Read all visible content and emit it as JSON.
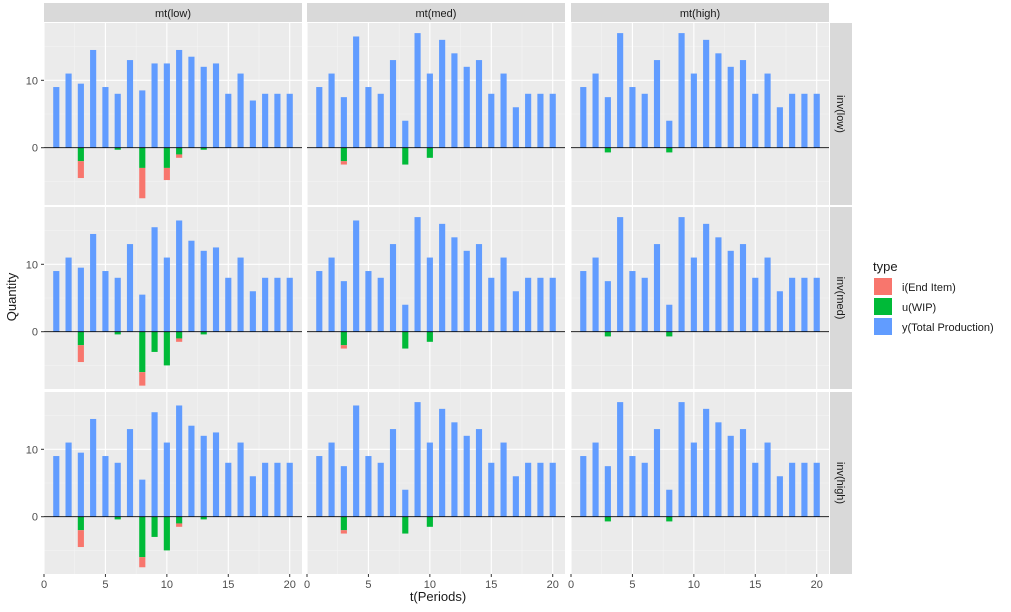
{
  "colors": {
    "panel_bg": "#EBEBEB",
    "strip_bg": "#D9D9D9",
    "grid_major": "#FFFFFF",
    "grid_minor": "#F4F4F4",
    "zero_line": "#000000",
    "text": "#1A1A1A",
    "tick_text": "#4D4D4D",
    "series": [
      "#F8766D",
      "#00BA38",
      "#619CFF"
    ]
  },
  "chart_data": {
    "type": "bar",
    "xlabel": "t(Periods)",
    "ylabel": "Quantity",
    "xlim": [
      0,
      21
    ],
    "ylim": [
      -8.5,
      18.5
    ],
    "x_ticks": [
      0,
      5,
      10,
      15,
      20
    ],
    "y_ticks": [
      0,
      10
    ],
    "grid": true,
    "legend_position": "right",
    "legend": {
      "title": "type",
      "entries": [
        "i(End Item)",
        "u(WIP)",
        "y(Total Production)"
      ]
    },
    "facet_cols": [
      "mt(low)",
      "mt(med)",
      "mt(high)"
    ],
    "facet_rows": [
      "inv(low)",
      "inv(med)",
      "inv(high)"
    ],
    "x": [
      1,
      2,
      3,
      4,
      5,
      6,
      7,
      8,
      9,
      10,
      11,
      12,
      13,
      14,
      15,
      16,
      17,
      18,
      19,
      20
    ],
    "panels": [
      {
        "col": 0,
        "row": 0,
        "y": [
          9,
          11,
          9.5,
          14.5,
          9,
          8,
          13,
          8.5,
          12.5,
          12.5,
          14.5,
          13.5,
          12,
          12.5,
          8,
          11,
          7,
          8,
          8,
          8
        ],
        "u": [
          0,
          0,
          -2,
          0,
          0,
          -0.3,
          0,
          -3,
          0,
          -3,
          -1,
          0,
          -0.3,
          0,
          0,
          0,
          0,
          0,
          0,
          0
        ],
        "i": [
          0,
          0,
          -2.5,
          0,
          0,
          0,
          0,
          -4.5,
          0,
          -1.8,
          -0.5,
          0,
          0,
          0,
          0,
          0,
          0,
          0,
          0,
          0
        ]
      },
      {
        "col": 1,
        "row": 0,
        "y": [
          9,
          11,
          7.5,
          16.5,
          9,
          8,
          13,
          4,
          17,
          11,
          16,
          14,
          12,
          13,
          8,
          11,
          6,
          8,
          8,
          8
        ],
        "u": [
          0,
          0,
          -2,
          0,
          0,
          0,
          0,
          -2.5,
          0,
          -1.5,
          0,
          0,
          0,
          0,
          0,
          0,
          0,
          0,
          0,
          0
        ],
        "i": [
          0,
          0,
          -0.5,
          0,
          0,
          0,
          0,
          0,
          0,
          0,
          0,
          0,
          0,
          0,
          0,
          0,
          0,
          0,
          0,
          0
        ]
      },
      {
        "col": 2,
        "row": 0,
        "y": [
          9,
          11,
          7.5,
          17,
          9,
          8,
          13,
          4,
          17,
          11,
          16,
          14,
          12,
          13,
          8,
          11,
          6,
          8,
          8,
          8
        ],
        "u": [
          0,
          0,
          -0.7,
          0,
          0,
          0,
          0,
          -0.7,
          0,
          0,
          0,
          0,
          0,
          0,
          0,
          0,
          0,
          0,
          0,
          0
        ],
        "i": [
          0,
          0,
          0,
          0,
          0,
          0,
          0,
          0,
          0,
          0,
          0,
          0,
          0,
          0,
          0,
          0,
          0,
          0,
          0,
          0
        ]
      },
      {
        "col": 0,
        "row": 1,
        "y": [
          9,
          11,
          9.5,
          14.5,
          9,
          8,
          13,
          5.5,
          15.5,
          11,
          16.5,
          13.5,
          12,
          12.5,
          8,
          11,
          6,
          8,
          8,
          8
        ],
        "u": [
          0,
          0,
          -2,
          0,
          0,
          -0.4,
          0,
          -6,
          -3,
          -5,
          -1,
          0,
          -0.4,
          0,
          0,
          0,
          0,
          0,
          0,
          0
        ],
        "i": [
          0,
          0,
          -2.5,
          0,
          0,
          0,
          0,
          -2,
          0,
          0,
          -0.5,
          0,
          0,
          0,
          0,
          0,
          0,
          0,
          0,
          0
        ]
      },
      {
        "col": 1,
        "row": 1,
        "y": [
          9,
          11,
          7.5,
          16.5,
          9,
          8,
          13,
          4,
          17,
          11,
          16,
          14,
          12,
          13,
          8,
          11,
          6,
          8,
          8,
          8
        ],
        "u": [
          0,
          0,
          -2,
          0,
          0,
          0,
          0,
          -2.5,
          0,
          -1.5,
          0,
          0,
          0,
          0,
          0,
          0,
          0,
          0,
          0,
          0
        ],
        "i": [
          0,
          0,
          -0.5,
          0,
          0,
          0,
          0,
          0,
          0,
          0,
          0,
          0,
          0,
          0,
          0,
          0,
          0,
          0,
          0,
          0
        ]
      },
      {
        "col": 2,
        "row": 1,
        "y": [
          9,
          11,
          7.5,
          17,
          9,
          8,
          13,
          4,
          17,
          11,
          16,
          14,
          12,
          13,
          8,
          11,
          6,
          8,
          8,
          8
        ],
        "u": [
          0,
          0,
          -0.7,
          0,
          0,
          0,
          0,
          -0.7,
          0,
          0,
          0,
          0,
          0,
          0,
          0,
          0,
          0,
          0,
          0,
          0
        ],
        "i": [
          0,
          0,
          0,
          0,
          0,
          0,
          0,
          0,
          0,
          0,
          0,
          0,
          0,
          0,
          0,
          0,
          0,
          0,
          0,
          0
        ]
      },
      {
        "col": 0,
        "row": 2,
        "y": [
          9,
          11,
          9.5,
          14.5,
          9,
          8,
          13,
          5.5,
          15.5,
          11,
          16.5,
          13.5,
          12,
          12.5,
          8,
          11,
          6,
          8,
          8,
          8
        ],
        "u": [
          0,
          0,
          -2,
          0,
          0,
          -0.4,
          0,
          -6,
          -3,
          -5,
          -1,
          0,
          -0.4,
          0,
          0,
          0,
          0,
          0,
          0,
          0
        ],
        "i": [
          0,
          0,
          -2.5,
          0,
          0,
          0,
          0,
          -1.5,
          0,
          0,
          -0.5,
          0,
          0,
          0,
          0,
          0,
          0,
          0,
          0,
          0
        ]
      },
      {
        "col": 1,
        "row": 2,
        "y": [
          9,
          11,
          7.5,
          16.5,
          9,
          8,
          13,
          4,
          17,
          11,
          16,
          14,
          12,
          13,
          8,
          11,
          6,
          8,
          8,
          8
        ],
        "u": [
          0,
          0,
          -2,
          0,
          0,
          0,
          0,
          -2.5,
          0,
          -1.5,
          0,
          0,
          0,
          0,
          0,
          0,
          0,
          0,
          0,
          0
        ],
        "i": [
          0,
          0,
          -0.5,
          0,
          0,
          0,
          0,
          0,
          0,
          0,
          0,
          0,
          0,
          0,
          0,
          0,
          0,
          0,
          0,
          0
        ]
      },
      {
        "col": 2,
        "row": 2,
        "y": [
          9,
          11,
          7.5,
          17,
          9,
          8,
          13,
          4,
          17,
          11,
          16,
          14,
          12,
          13,
          8,
          11,
          6,
          8,
          8,
          8
        ],
        "u": [
          0,
          0,
          -0.7,
          0,
          0,
          0,
          0,
          -0.7,
          0,
          0,
          0,
          0,
          0,
          0,
          0,
          0,
          0,
          0,
          0,
          0
        ],
        "i": [
          0,
          0,
          0,
          0,
          0,
          0,
          0,
          0,
          0,
          0,
          0,
          0,
          0,
          0,
          0,
          0,
          0,
          0,
          0,
          0
        ]
      }
    ]
  }
}
